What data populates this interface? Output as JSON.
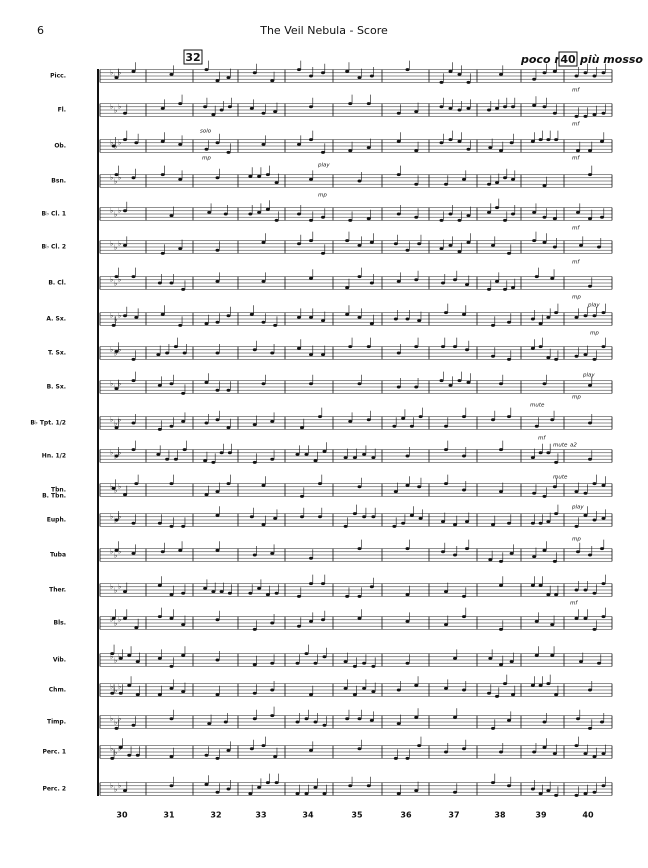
{
  "header": {
    "page_number": "6",
    "title": "The Veil Nebula - Score"
  },
  "rehearsal_marks": [
    "32",
    "40"
  ],
  "tempo": [
    "poco rit.",
    "più mosso"
  ],
  "instruments": [
    "Picc.",
    "Fl.",
    "Ob.",
    "Bsn.",
    "B♭ Cl. 1",
    "B♭ Cl. 2",
    "B. Cl.",
    "A. Sx.",
    "T. Sx.",
    "B. Sx.",
    "B♭ Tpt. 1/2",
    "Hn. 1/2",
    "Tbn.",
    "Euph.",
    "Tuba",
    "Ther.",
    "Bls.",
    "Vib.",
    "Chm.",
    "Timp.",
    "Perc. 1",
    "Perc. 2"
  ],
  "instrument_sublabel": "B. Tbn.",
  "measure_numbers": [
    "30",
    "31",
    "32",
    "33",
    "34",
    "35",
    "36",
    "37",
    "38",
    "39",
    "40"
  ],
  "annotations": [
    "solo",
    "mp",
    "play",
    "mp",
    "mf",
    "mf",
    "mf",
    "mf",
    "mf",
    "mp",
    "play",
    "mp",
    "play",
    "mp",
    "mute",
    "mf",
    "mute",
    "a2",
    "mute",
    "play",
    "mp",
    "mf"
  ]
}
